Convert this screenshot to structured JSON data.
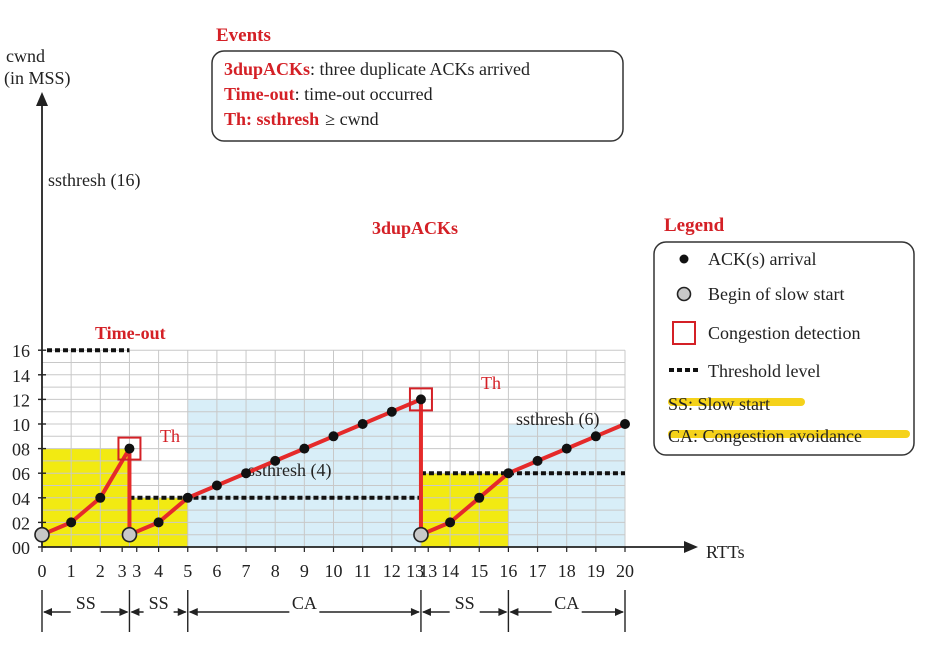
{
  "chart_data": {
    "type": "line",
    "xlabel": "RTTs",
    "ylabel_line1": "cwnd",
    "ylabel_line2": "(in MSS)",
    "xlim": [
      0,
      20
    ],
    "ylim": [
      0,
      16
    ],
    "x_ticks": [
      "0",
      "1",
      "2",
      "3",
      "3",
      "4",
      "5",
      "6",
      "7",
      "8",
      "9",
      "10",
      "11",
      "12",
      "13",
      "13",
      "14",
      "15",
      "16",
      "17",
      "18",
      "19",
      "20"
    ],
    "y_ticks": [
      "00",
      "02",
      "04",
      "06",
      "08",
      "10",
      "12",
      "14",
      "16"
    ],
    "grid": true,
    "series": [
      {
        "points": [
          [
            0,
            1
          ],
          [
            1,
            2
          ],
          [
            2,
            4
          ],
          [
            3,
            8
          ],
          [
            3,
            1
          ],
          [
            4,
            2
          ],
          [
            5,
            4
          ],
          [
            6,
            5
          ],
          [
            7,
            6
          ],
          [
            8,
            7
          ],
          [
            9,
            8
          ],
          [
            10,
            9
          ],
          [
            11,
            10
          ],
          [
            12,
            11
          ],
          [
            13,
            12
          ],
          [
            13,
            1
          ],
          [
            14,
            2
          ],
          [
            15,
            4
          ],
          [
            16,
            6
          ],
          [
            17,
            7
          ],
          [
            18,
            8
          ],
          [
            19,
            9
          ],
          [
            20,
            10
          ]
        ]
      }
    ],
    "ack_arrivals": [
      [
        1,
        2
      ],
      [
        2,
        4
      ],
      [
        3,
        8
      ],
      [
        4,
        2
      ],
      [
        5,
        4
      ],
      [
        6,
        5
      ],
      [
        7,
        6
      ],
      [
        8,
        7
      ],
      [
        9,
        8
      ],
      [
        10,
        9
      ],
      [
        11,
        10
      ],
      [
        12,
        11
      ],
      [
        13,
        12
      ],
      [
        14,
        2
      ],
      [
        15,
        4
      ],
      [
        16,
        6
      ],
      [
        17,
        7
      ],
      [
        18,
        8
      ],
      [
        19,
        9
      ],
      [
        20,
        10
      ]
    ],
    "slow_start_begins": [
      [
        0,
        1
      ],
      [
        3,
        1
      ],
      [
        13,
        1
      ]
    ],
    "congestion_detections": [
      {
        "x": 3,
        "y": 8,
        "label": "Time-out"
      },
      {
        "x": 13,
        "y": 12,
        "label": "3dupACKs"
      }
    ],
    "thresholds": [
      {
        "x": [
          0,
          3
        ],
        "y": 16,
        "label": "ssthresh (16)"
      },
      {
        "x": [
          3,
          13
        ],
        "y": 4,
        "label": "ssthresh (4)"
      },
      {
        "x": [
          13,
          20
        ],
        "y": 6,
        "label": "ssthresh (6)"
      }
    ],
    "th_marks": [
      {
        "x": 5,
        "y": 4,
        "label": "Th"
      },
      {
        "x": 16,
        "y": 6,
        "label": "Th"
      }
    ],
    "phase_regions": [
      {
        "x": [
          0,
          3
        ],
        "y": [
          0,
          8
        ],
        "phase": "SS",
        "color": "#f2ea12"
      },
      {
        "x": [
          3,
          5
        ],
        "y": [
          0,
          4
        ],
        "phase": "SS",
        "color": "#f2ea12"
      },
      {
        "x": [
          5,
          13
        ],
        "y": [
          0,
          12
        ],
        "phase": "CA",
        "color": "#d8eef8"
      },
      {
        "x": [
          13,
          16
        ],
        "y": [
          0,
          6
        ],
        "phase": "SS",
        "color": "#f2ea12"
      },
      {
        "x": [
          16,
          20
        ],
        "y": [
          0,
          10
        ],
        "phase": "CA",
        "color": "#d8eef8"
      }
    ],
    "phase_spans": [
      {
        "x": [
          0,
          3
        ],
        "label": "SS"
      },
      {
        "x": [
          3,
          5
        ],
        "label": "SS"
      },
      {
        "x": [
          5,
          13
        ],
        "label": "CA"
      },
      {
        "x": [
          13,
          16
        ],
        "label": "SS"
      },
      {
        "x": [
          16,
          20
        ],
        "label": "CA"
      }
    ]
  },
  "events": {
    "title": "Events",
    "rows": [
      {
        "term": "3dupACKs",
        "desc": ": three duplicate ACKs arrived"
      },
      {
        "term": "Time-out",
        "desc": ": time-out occurred"
      },
      {
        "term": "Th: ssthresh",
        "desc": "≥  cwnd"
      }
    ]
  },
  "legend": {
    "title": "Legend",
    "items": [
      {
        "symbol": "ack-dot",
        "label": "ACK(s) arrival"
      },
      {
        "symbol": "slow-start-circle",
        "label": "Begin of slow start"
      },
      {
        "symbol": "congestion-square",
        "label": "Congestion detection"
      },
      {
        "symbol": "threshold-dash",
        "label": "Threshold level"
      },
      {
        "symbol": "highlight",
        "label": "SS: Slow start"
      },
      {
        "symbol": "highlight",
        "label": "CA: Congestion avoidance"
      }
    ]
  },
  "colors": {
    "line": "#e52a2a",
    "accent_red": "#d42026",
    "ss_fill": "#f2ea12",
    "ca_fill": "#d8eef8",
    "grid": "#c8c8c8",
    "highlight": "#f5d21a"
  }
}
